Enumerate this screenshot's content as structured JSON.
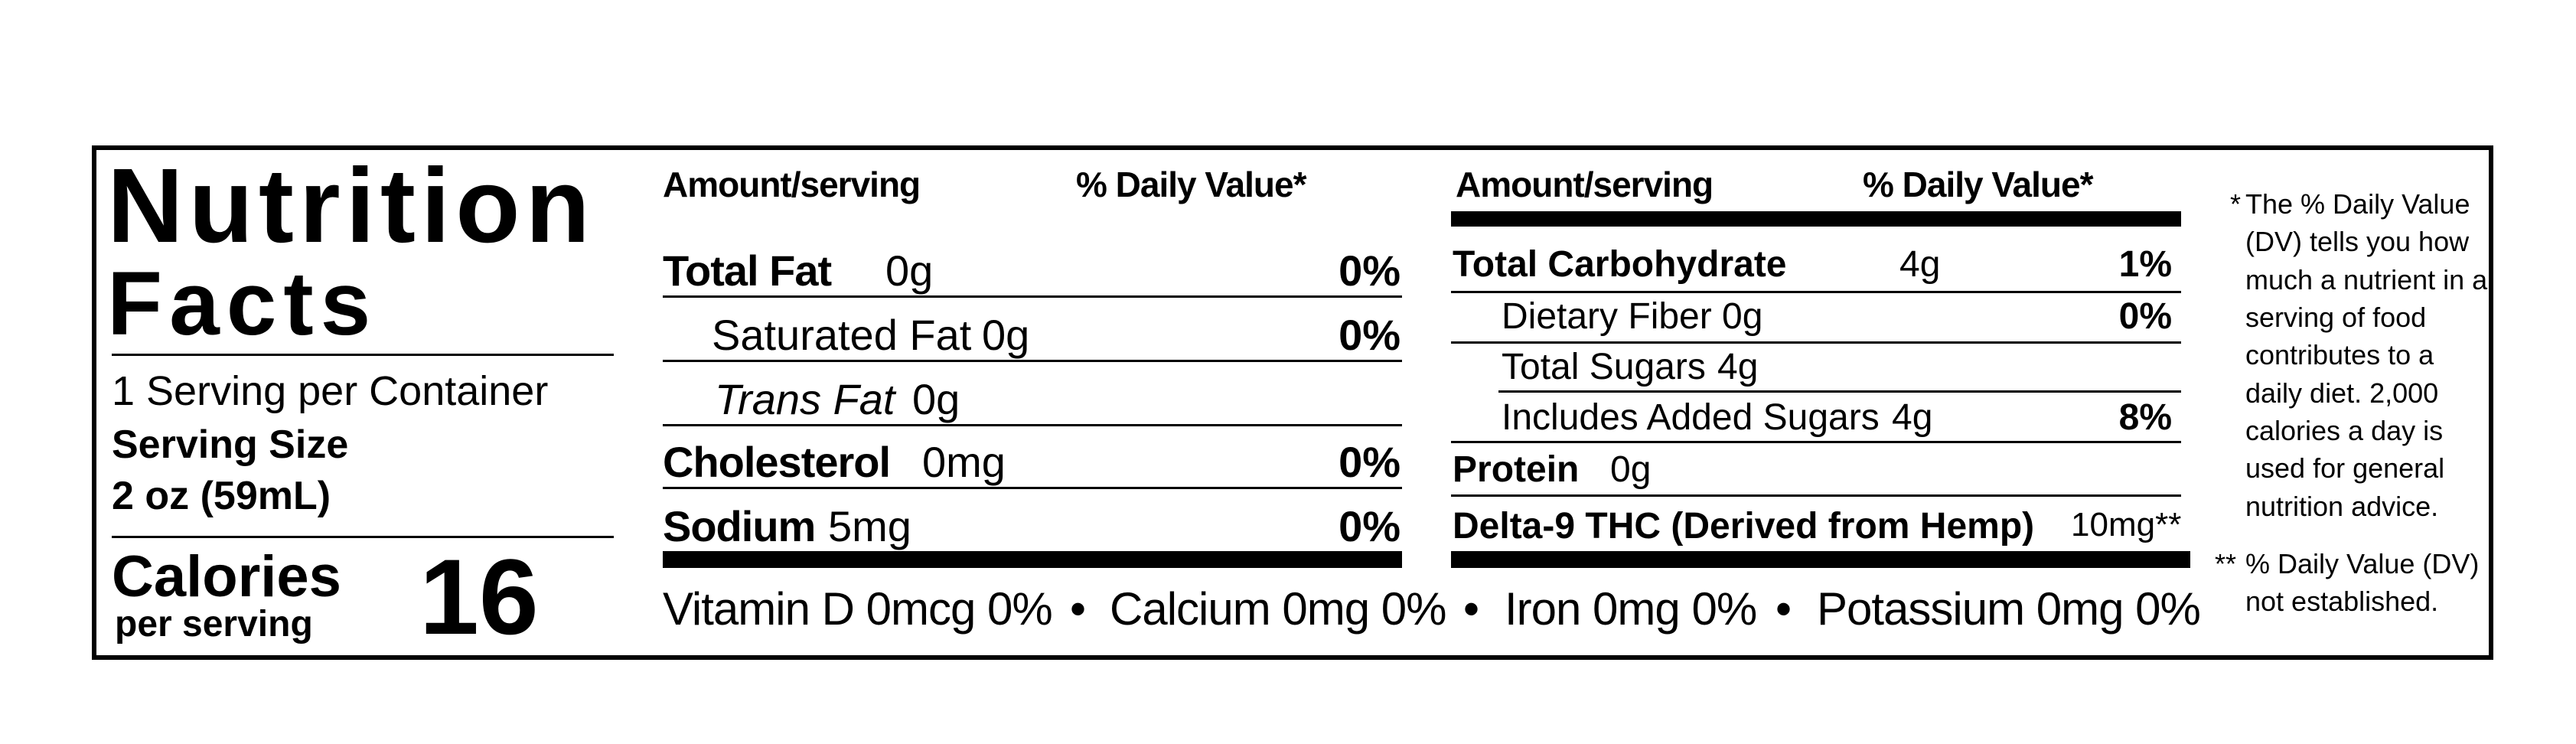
{
  "title": {
    "line1": "Nutrition",
    "line2": "Facts"
  },
  "servings_per_container": "1 Serving per Container",
  "serving_size_label": "Serving Size",
  "serving_size_value": "2 oz (59mL)",
  "calories": {
    "label": "Calories",
    "sublabel": "per serving",
    "value": "16"
  },
  "col_left": {
    "amount_header": "Amount/serving",
    "dv_header": "% Daily Value*",
    "rows": [
      {
        "name": "Total Fat",
        "amount": "0g",
        "dv": "0%"
      },
      {
        "name": "Saturated Fat",
        "amount": "0g",
        "dv": "0%"
      },
      {
        "name": "Trans Fat",
        "amount": "0g",
        "dv": ""
      },
      {
        "name": "Cholesterol",
        "amount": "0mg",
        "dv": "0%"
      },
      {
        "name": "Sodium",
        "amount": "5mg",
        "dv": "0%"
      }
    ]
  },
  "col_right": {
    "amount_header": "Amount/serving",
    "dv_header": "% Daily Value*",
    "rows": [
      {
        "name": "Total Carbohydrate",
        "amount": "4g",
        "dv": "1%"
      },
      {
        "name": "Dietary Fiber",
        "amount": "0g",
        "dv": "0%"
      },
      {
        "name": "Total Sugars",
        "amount": "4g",
        "dv": ""
      },
      {
        "name": "Includes Added Sugars",
        "amount": "4g",
        "dv": "8%"
      },
      {
        "name": "Protein",
        "amount": "0g",
        "dv": ""
      },
      {
        "name": "Delta-9 THC (Derived from Hemp)",
        "amount": "10mg**",
        "dv": ""
      }
    ]
  },
  "micronutrients": [
    "Vitamin D 0mcg 0%",
    "Calcium 0mg 0%",
    "Iron 0mg 0%",
    "Potassium 0mg 0%"
  ],
  "separator": "•",
  "footnotes": {
    "dv_marker": "*",
    "dv_note": "The % Daily Value (DV) tells you how much a nutrient in a serving of food contributes to a daily diet. 2,000 calories a day is used for general nutrition advice.",
    "ne_marker": "**",
    "ne_note": "% Daily Value (DV) not established."
  }
}
